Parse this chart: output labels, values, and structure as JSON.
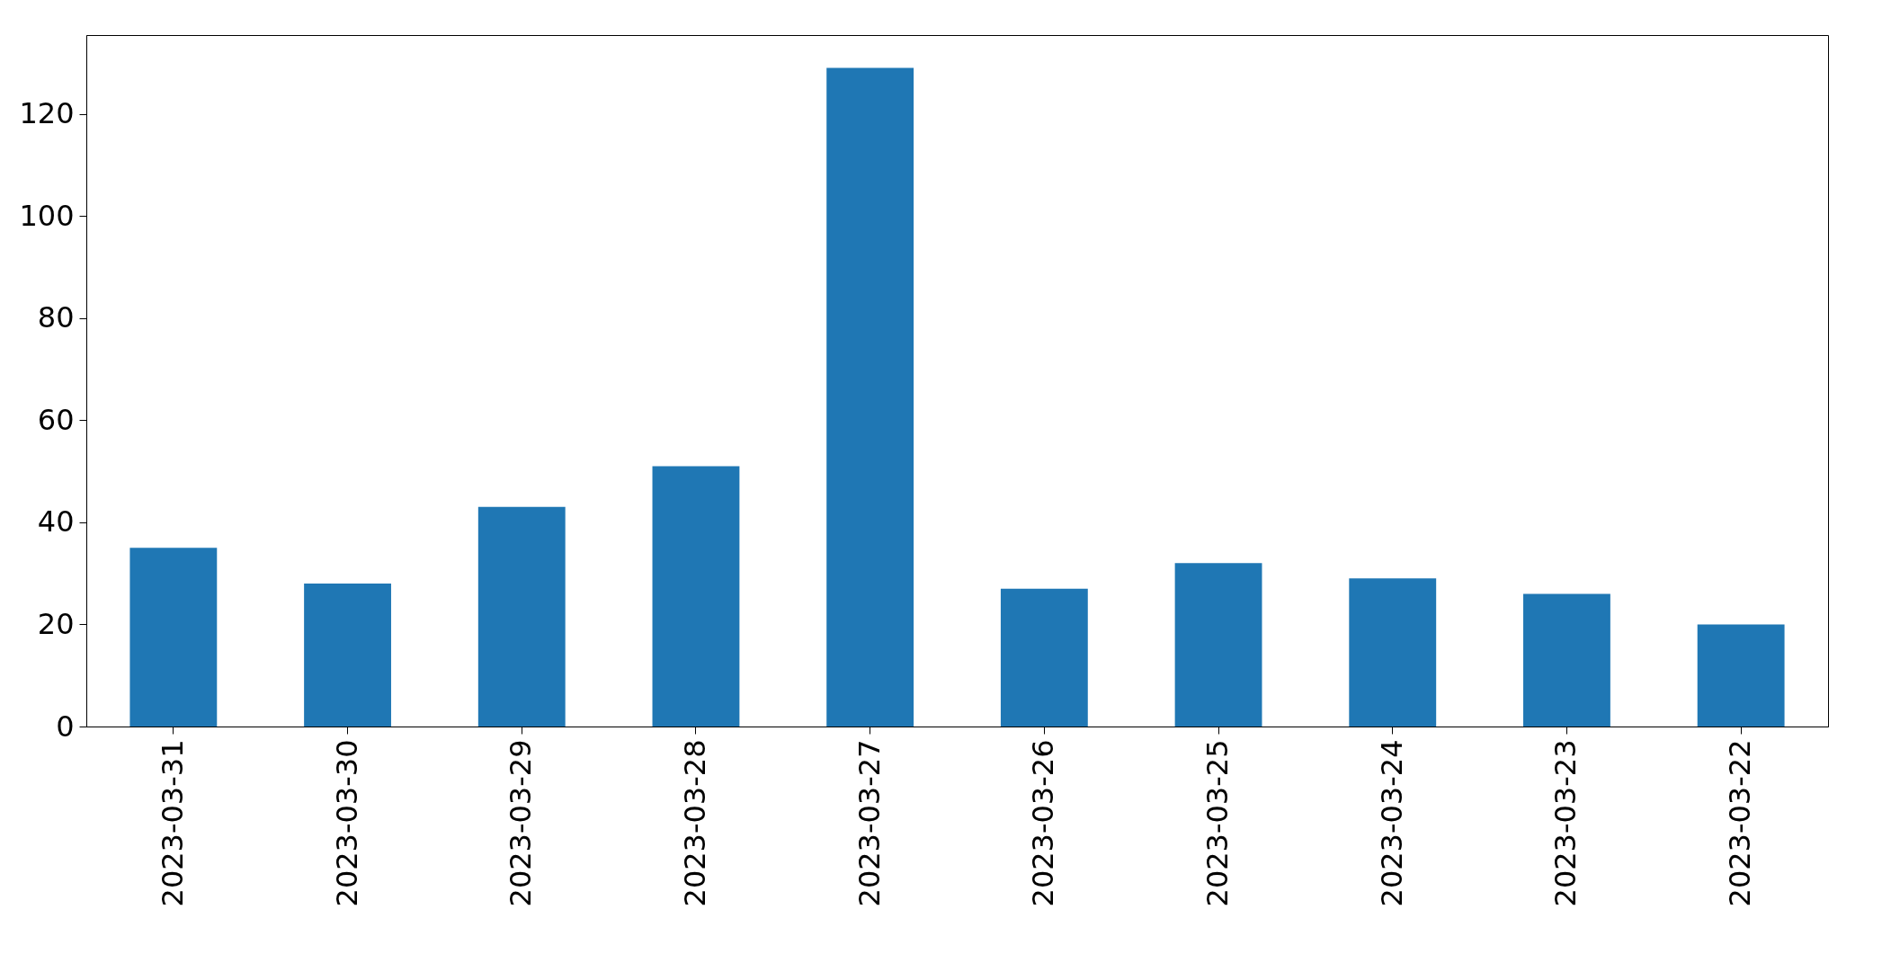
{
  "chart_data": {
    "type": "bar",
    "categories": [
      "2023-03-31",
      "2023-03-30",
      "2023-03-29",
      "2023-03-28",
      "2023-03-27",
      "2023-03-26",
      "2023-03-25",
      "2023-03-24",
      "2023-03-23",
      "2023-03-22"
    ],
    "values": [
      35,
      28,
      43,
      51,
      129,
      27,
      32,
      29,
      26,
      20
    ],
    "color": "#1f77b4",
    "ylim": [
      0,
      135.45
    ],
    "yticks": [
      0,
      20,
      40,
      60,
      80,
      100,
      120
    ],
    "grid": false
  }
}
